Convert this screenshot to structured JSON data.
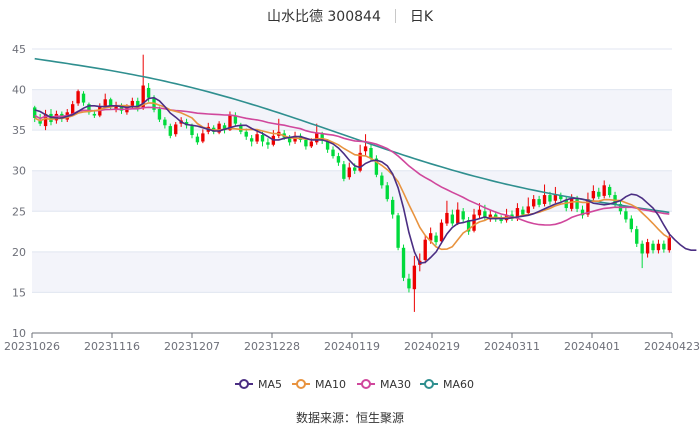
{
  "header": {
    "name_code": "山水比德 300844",
    "period": "日K"
  },
  "source": "数据来源：恒生聚源",
  "chart_data": {
    "type": "candlestick",
    "ylim": [
      10,
      45
    ],
    "yticks": [
      10,
      15,
      20,
      25,
      30,
      35,
      40,
      45
    ],
    "xticks": [
      "20231026",
      "20231116",
      "20231207",
      "20231228",
      "20240119",
      "20240219",
      "20240311",
      "20240401",
      "20240423"
    ],
    "grid": true,
    "legend_position": "bottom",
    "colors": {
      "up": "#ec0000",
      "down": "#00da3c",
      "ma5": "#4b2e83",
      "ma10": "#e8933f",
      "ma30": "#d0479c",
      "ma60": "#2f8f8f"
    },
    "legend": [
      "MA5",
      "MA10",
      "MA30",
      "MA60"
    ],
    "candles": [
      {
        "o": 37.8,
        "c": 36.5,
        "h": 38.0,
        "l": 36.0
      },
      {
        "o": 36.2,
        "c": 35.8,
        "h": 37.0,
        "l": 35.5
      },
      {
        "o": 35.5,
        "c": 37.0,
        "h": 37.5,
        "l": 35.0
      },
      {
        "o": 37.0,
        "c": 36.0,
        "h": 37.6,
        "l": 35.6
      },
      {
        "o": 36.2,
        "c": 37.0,
        "h": 37.4,
        "l": 35.8
      },
      {
        "o": 37.0,
        "c": 36.4,
        "h": 37.3,
        "l": 36.0
      },
      {
        "o": 36.3,
        "c": 37.2,
        "h": 37.6,
        "l": 36.0
      },
      {
        "o": 37.0,
        "c": 38.2,
        "h": 38.6,
        "l": 36.8
      },
      {
        "o": 38.3,
        "c": 39.8,
        "h": 40.0,
        "l": 38.0
      },
      {
        "o": 39.5,
        "c": 38.4,
        "h": 39.8,
        "l": 38.0
      },
      {
        "o": 38.2,
        "c": 37.2,
        "h": 38.4,
        "l": 36.9
      },
      {
        "o": 37.0,
        "c": 36.8,
        "h": 37.5,
        "l": 36.5
      },
      {
        "o": 36.8,
        "c": 37.9,
        "h": 38.3,
        "l": 36.6
      },
      {
        "o": 38.0,
        "c": 38.8,
        "h": 39.5,
        "l": 37.8
      },
      {
        "o": 38.8,
        "c": 37.8,
        "h": 39.0,
        "l": 37.5
      },
      {
        "o": 37.5,
        "c": 38.0,
        "h": 38.5,
        "l": 37.2
      },
      {
        "o": 38.0,
        "c": 37.4,
        "h": 38.3,
        "l": 37.0
      },
      {
        "o": 37.2,
        "c": 38.0,
        "h": 38.2,
        "l": 36.9
      },
      {
        "o": 38.0,
        "c": 38.6,
        "h": 39.0,
        "l": 37.6
      },
      {
        "o": 38.6,
        "c": 37.6,
        "h": 39.0,
        "l": 37.3
      },
      {
        "o": 37.7,
        "c": 40.5,
        "h": 44.3,
        "l": 37.5
      },
      {
        "o": 40.2,
        "c": 39.0,
        "h": 40.8,
        "l": 38.5
      },
      {
        "o": 39.0,
        "c": 37.5,
        "h": 39.3,
        "l": 37.2
      },
      {
        "o": 37.6,
        "c": 36.3,
        "h": 37.9,
        "l": 36.0
      },
      {
        "o": 36.3,
        "c": 35.6,
        "h": 36.6,
        "l": 35.2
      },
      {
        "o": 35.5,
        "c": 34.3,
        "h": 35.8,
        "l": 34.0
      },
      {
        "o": 34.5,
        "c": 35.7,
        "h": 36.0,
        "l": 34.2
      },
      {
        "o": 35.8,
        "c": 36.2,
        "h": 36.6,
        "l": 35.4
      },
      {
        "o": 36.0,
        "c": 35.6,
        "h": 36.4,
        "l": 35.2
      },
      {
        "o": 35.5,
        "c": 34.4,
        "h": 35.8,
        "l": 34.0
      },
      {
        "o": 34.2,
        "c": 33.5,
        "h": 34.6,
        "l": 33.2
      },
      {
        "o": 33.6,
        "c": 34.6,
        "h": 35.1,
        "l": 33.4
      },
      {
        "o": 34.8,
        "c": 35.4,
        "h": 35.9,
        "l": 34.5
      },
      {
        "o": 35.3,
        "c": 34.8,
        "h": 35.6,
        "l": 34.5
      },
      {
        "o": 34.7,
        "c": 35.8,
        "h": 36.1,
        "l": 34.5
      },
      {
        "o": 35.6,
        "c": 35.0,
        "h": 35.9,
        "l": 34.6
      },
      {
        "o": 35.0,
        "c": 36.8,
        "h": 37.3,
        "l": 34.9
      },
      {
        "o": 36.8,
        "c": 35.8,
        "h": 37.2,
        "l": 35.5
      },
      {
        "o": 35.6,
        "c": 34.8,
        "h": 35.9,
        "l": 34.5
      },
      {
        "o": 34.8,
        "c": 34.2,
        "h": 35.2,
        "l": 33.8
      },
      {
        "o": 34.0,
        "c": 33.6,
        "h": 34.4,
        "l": 33.0
      },
      {
        "o": 33.6,
        "c": 34.5,
        "h": 35.0,
        "l": 33.3
      },
      {
        "o": 34.4,
        "c": 33.6,
        "h": 34.8,
        "l": 33.0
      },
      {
        "o": 33.5,
        "c": 33.2,
        "h": 34.0,
        "l": 32.7
      },
      {
        "o": 33.2,
        "c": 34.3,
        "h": 35.0,
        "l": 33.0
      },
      {
        "o": 34.3,
        "c": 34.8,
        "h": 36.4,
        "l": 34.0
      },
      {
        "o": 34.6,
        "c": 34.1,
        "h": 35.0,
        "l": 33.8
      },
      {
        "o": 34.0,
        "c": 33.5,
        "h": 34.4,
        "l": 33.1
      },
      {
        "o": 33.6,
        "c": 34.3,
        "h": 34.8,
        "l": 33.3
      },
      {
        "o": 34.3,
        "c": 33.8,
        "h": 34.6,
        "l": 33.5
      },
      {
        "o": 33.8,
        "c": 33.0,
        "h": 34.1,
        "l": 32.6
      },
      {
        "o": 33.0,
        "c": 33.6,
        "h": 34.0,
        "l": 32.8
      },
      {
        "o": 33.5,
        "c": 34.6,
        "h": 35.8,
        "l": 33.2
      },
      {
        "o": 34.5,
        "c": 33.7,
        "h": 34.8,
        "l": 33.3
      },
      {
        "o": 33.6,
        "c": 32.6,
        "h": 33.9,
        "l": 32.2
      },
      {
        "o": 32.6,
        "c": 31.8,
        "h": 33.0,
        "l": 31.5
      },
      {
        "o": 31.8,
        "c": 31.0,
        "h": 32.2,
        "l": 30.6
      },
      {
        "o": 30.8,
        "c": 29.0,
        "h": 31.2,
        "l": 28.7
      },
      {
        "o": 29.2,
        "c": 30.4,
        "h": 31.0,
        "l": 28.9
      },
      {
        "o": 30.4,
        "c": 30.0,
        "h": 30.9,
        "l": 29.6
      },
      {
        "o": 30.0,
        "c": 32.2,
        "h": 33.2,
        "l": 29.8
      },
      {
        "o": 32.4,
        "c": 33.0,
        "h": 34.5,
        "l": 31.8
      },
      {
        "o": 32.8,
        "c": 31.5,
        "h": 33.3,
        "l": 31.2
      },
      {
        "o": 31.5,
        "c": 29.5,
        "h": 31.9,
        "l": 29.2
      },
      {
        "o": 29.4,
        "c": 28.2,
        "h": 29.8,
        "l": 27.8
      },
      {
        "o": 28.2,
        "c": 26.5,
        "h": 28.6,
        "l": 26.2
      },
      {
        "o": 26.4,
        "c": 24.6,
        "h": 26.8,
        "l": 24.1
      },
      {
        "o": 24.5,
        "c": 20.5,
        "h": 24.8,
        "l": 20.2
      },
      {
        "o": 20.5,
        "c": 16.8,
        "h": 20.9,
        "l": 16.4
      },
      {
        "o": 16.7,
        "c": 15.5,
        "h": 17.3,
        "l": 15.0
      },
      {
        "o": 15.4,
        "c": 18.3,
        "h": 19.5,
        "l": 12.6
      },
      {
        "o": 18.4,
        "c": 18.9,
        "h": 19.8,
        "l": 17.6
      },
      {
        "o": 19.0,
        "c": 21.5,
        "h": 22.0,
        "l": 18.6
      },
      {
        "o": 21.4,
        "c": 22.3,
        "h": 23.0,
        "l": 21.0
      },
      {
        "o": 22.0,
        "c": 21.2,
        "h": 22.4,
        "l": 20.8
      },
      {
        "o": 21.3,
        "c": 23.6,
        "h": 24.0,
        "l": 21.0
      },
      {
        "o": 23.5,
        "c": 24.8,
        "h": 26.3,
        "l": 23.2
      },
      {
        "o": 24.6,
        "c": 23.5,
        "h": 25.2,
        "l": 23.2
      },
      {
        "o": 23.5,
        "c": 25.2,
        "h": 26.1,
        "l": 23.3
      },
      {
        "o": 25.0,
        "c": 24.0,
        "h": 25.4,
        "l": 23.6
      },
      {
        "o": 23.9,
        "c": 22.5,
        "h": 24.3,
        "l": 22.1
      },
      {
        "o": 22.6,
        "c": 24.6,
        "h": 25.3,
        "l": 22.4
      },
      {
        "o": 24.5,
        "c": 25.2,
        "h": 26.0,
        "l": 24.1
      },
      {
        "o": 25.0,
        "c": 24.2,
        "h": 25.8,
        "l": 23.8
      },
      {
        "o": 24.0,
        "c": 24.6,
        "h": 25.2,
        "l": 23.7
      },
      {
        "o": 24.6,
        "c": 24.0,
        "h": 25.0,
        "l": 23.7
      },
      {
        "o": 24.0,
        "c": 23.8,
        "h": 24.5,
        "l": 23.5
      },
      {
        "o": 23.9,
        "c": 24.5,
        "h": 25.3,
        "l": 23.6
      },
      {
        "o": 24.6,
        "c": 24.1,
        "h": 25.1,
        "l": 23.8
      },
      {
        "o": 24.2,
        "c": 25.4,
        "h": 26.0,
        "l": 23.8
      },
      {
        "o": 25.2,
        "c": 24.6,
        "h": 25.6,
        "l": 24.3
      },
      {
        "o": 24.8,
        "c": 25.6,
        "h": 26.7,
        "l": 24.5
      },
      {
        "o": 25.6,
        "c": 26.5,
        "h": 27.0,
        "l": 25.3
      },
      {
        "o": 26.5,
        "c": 25.8,
        "h": 26.9,
        "l": 25.5
      },
      {
        "o": 25.9,
        "c": 27.0,
        "h": 28.3,
        "l": 25.6
      },
      {
        "o": 27.0,
        "c": 26.2,
        "h": 27.4,
        "l": 25.8
      },
      {
        "o": 26.3,
        "c": 27.1,
        "h": 28.0,
        "l": 26.0
      },
      {
        "o": 27.0,
        "c": 26.5,
        "h": 27.3,
        "l": 26.2
      },
      {
        "o": 26.4,
        "c": 25.4,
        "h": 26.8,
        "l": 25.0
      },
      {
        "o": 25.3,
        "c": 26.6,
        "h": 27.1,
        "l": 25.0
      },
      {
        "o": 26.5,
        "c": 25.3,
        "h": 26.9,
        "l": 24.9
      },
      {
        "o": 25.2,
        "c": 24.5,
        "h": 25.7,
        "l": 24.1
      },
      {
        "o": 24.6,
        "c": 26.5,
        "h": 27.3,
        "l": 24.3
      },
      {
        "o": 26.6,
        "c": 27.5,
        "h": 28.2,
        "l": 26.3
      },
      {
        "o": 27.4,
        "c": 26.8,
        "h": 27.9,
        "l": 26.5
      },
      {
        "o": 26.9,
        "c": 28.2,
        "h": 28.8,
        "l": 26.6
      },
      {
        "o": 28.0,
        "c": 27.0,
        "h": 28.3,
        "l": 26.7
      },
      {
        "o": 27.0,
        "c": 25.8,
        "h": 27.4,
        "l": 25.5
      },
      {
        "o": 25.9,
        "c": 25.0,
        "h": 26.3,
        "l": 24.6
      },
      {
        "o": 25.0,
        "c": 24.0,
        "h": 25.4,
        "l": 23.6
      },
      {
        "o": 24.1,
        "c": 22.8,
        "h": 24.5,
        "l": 22.4
      },
      {
        "o": 22.8,
        "c": 21.0,
        "h": 23.2,
        "l": 20.6
      },
      {
        "o": 21.0,
        "c": 19.8,
        "h": 21.4,
        "l": 18.0
      },
      {
        "o": 19.8,
        "c": 21.2,
        "h": 21.6,
        "l": 19.3
      },
      {
        "o": 21.0,
        "c": 20.2,
        "h": 21.4,
        "l": 19.8
      },
      {
        "o": 20.2,
        "c": 21.0,
        "h": 21.5,
        "l": 19.8
      },
      {
        "o": 21.0,
        "c": 20.3,
        "h": 21.4,
        "l": 19.9
      },
      {
        "o": 20.2,
        "c": 21.8,
        "h": 22.4,
        "l": 19.9
      }
    ],
    "ma5": [
      37.5,
      37.3,
      36.9,
      36.6,
      36.5,
      36.5,
      36.7,
      36.9,
      37.3,
      37.7,
      38.0,
      38.0,
      37.9,
      37.9,
      38.0,
      38.0,
      37.9,
      37.8,
      37.9,
      37.9,
      38.3,
      38.9,
      39.0,
      38.6,
      37.9,
      37.1,
      36.6,
      36.0,
      35.7,
      35.6,
      35.5,
      35.3,
      35.1,
      34.9,
      34.9,
      35.1,
      35.3,
      35.5,
      35.6,
      35.6,
      35.2,
      34.9,
      34.6,
      34.2,
      33.8,
      33.8,
      34.0,
      34.1,
      34.2,
      34.2,
      34.0,
      33.8,
      33.8,
      33.8,
      33.6,
      33.3,
      32.8,
      32.1,
      31.3,
      30.6,
      30.4,
      30.9,
      31.2,
      31.3,
      31.1,
      30.6,
      29.6,
      27.9,
      25.4,
      22.4,
      20.0,
      18.6,
      18.7,
      19.3,
      20.0,
      21.1,
      22.2,
      23.0,
      23.5,
      23.6,
      23.8,
      23.9,
      24.1,
      24.3,
      24.1,
      24.1,
      24.1,
      24.1,
      24.2,
      24.3,
      24.4,
      24.5,
      24.7,
      25.0,
      25.3,
      25.6,
      25.9,
      26.1,
      26.4,
      26.6,
      26.6,
      26.5,
      26.3,
      26.0,
      25.9,
      25.8,
      25.9,
      26.1,
      26.3,
      26.8,
      27.1,
      27.0,
      26.6,
      26.0,
      25.4,
      24.5,
      23.3,
      22.2,
      21.5,
      20.9,
      20.4,
      20.2,
      20.2
    ]
  }
}
